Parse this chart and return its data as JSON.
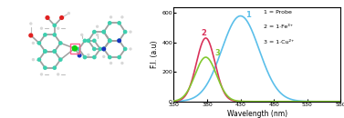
{
  "fig_width": 3.77,
  "fig_height": 1.3,
  "dpi": 100,
  "plot_xlim": [
    330,
    580
  ],
  "plot_ylim": [
    0,
    640
  ],
  "xticks": [
    330,
    380,
    430,
    480,
    530,
    580
  ],
  "yticks": [
    0,
    200,
    400,
    600
  ],
  "xlabel": "Wavelength (nm)",
  "ylabel": "F.I. (a.u)",
  "legend_lines": [
    "1 = Probe",
    "2 = 1·Fe³⁺",
    "3 = 1·Cu²⁺"
  ],
  "curve1_color": "#5bbfea",
  "curve2_color": "#d9325a",
  "curve3_color": "#82c930",
  "curve1_peak": 430,
  "curve1_height": 580,
  "curve1_sigma": 28,
  "curve2_peak": 378,
  "curve2_height": 430,
  "curve2_sigma": 14,
  "curve3_peak": 378,
  "curve3_height": 300,
  "curve3_sigma": 16,
  "bg_color": "#ffffff",
  "outer_color": "#1a1a1a",
  "tick_color": "black",
  "axis_color": "black",
  "label_color": "black",
  "atom_teal": "#3ecfaf",
  "atom_red": "#e02020",
  "atom_blue": "#1a30c0",
  "atom_green": "#10d010",
  "atom_white": "#d8d8d8",
  "bond_color": "#a0a0a0"
}
